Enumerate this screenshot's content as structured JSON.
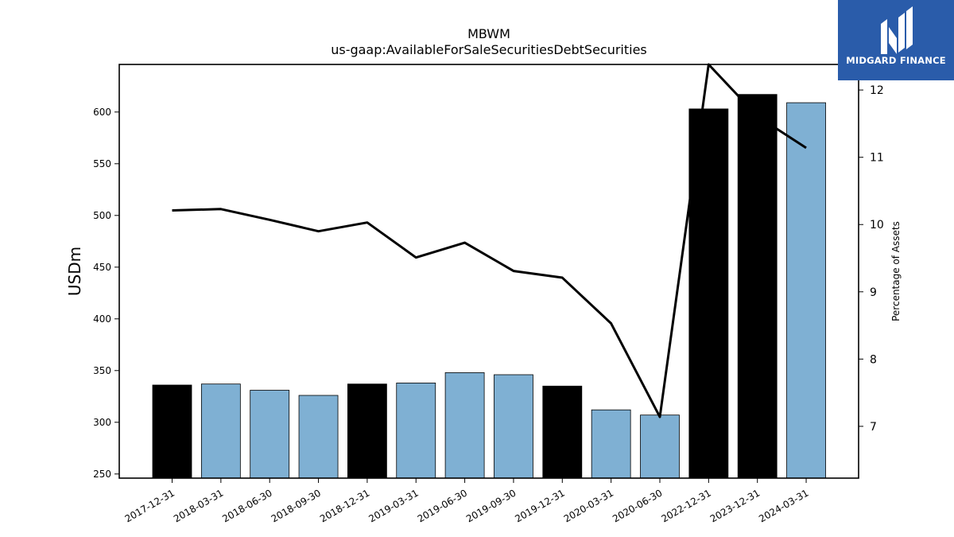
{
  "chart_data": {
    "type": "bar",
    "title": "MBWM",
    "subtitle": "us-gaap:AvailableForSaleSecuritiesDebtSecurities",
    "ylabel": "USDm",
    "y2label": "Percentage of Assets",
    "categories": [
      "2017-12-31",
      "2018-03-31",
      "2018-06-30",
      "2018-09-30",
      "2018-12-31",
      "2019-03-31",
      "2019-06-30",
      "2019-09-30",
      "2019-12-31",
      "2020-03-31",
      "2020-06-30",
      "2022-12-31",
      "2023-12-31",
      "2024-03-31"
    ],
    "series": [
      {
        "values": [
          336,
          337,
          331,
          326,
          337,
          338,
          348,
          346,
          335,
          312,
          307,
          603,
          617,
          609
        ],
        "bar_colors": [
          "#000000",
          "#7fb0d3",
          "#7fb0d3",
          "#7fb0d3",
          "#000000",
          "#7fb0d3",
          "#7fb0d3",
          "#7fb0d3",
          "#000000",
          "#7fb0d3",
          "#7fb0d3",
          "#000000",
          "#000000",
          "#7fb0d3"
        ]
      },
      {
        "values": [
          10.21,
          10.23,
          10.07,
          9.9,
          10.03,
          9.51,
          9.73,
          9.31,
          9.21,
          8.53,
          7.14,
          12.38,
          11.61,
          11.14
        ],
        "color": "#000000"
      }
    ],
    "ylim": [
      246,
      646
    ],
    "y2lim": [
      6.23,
      12.38
    ],
    "yticks": [
      250,
      300,
      350,
      400,
      450,
      500,
      550,
      600
    ],
    "y2ticks": [
      7,
      8,
      9,
      10,
      11,
      12
    ],
    "grid": false
  },
  "logo": {
    "text": "MIDGARD FINANCE"
  }
}
